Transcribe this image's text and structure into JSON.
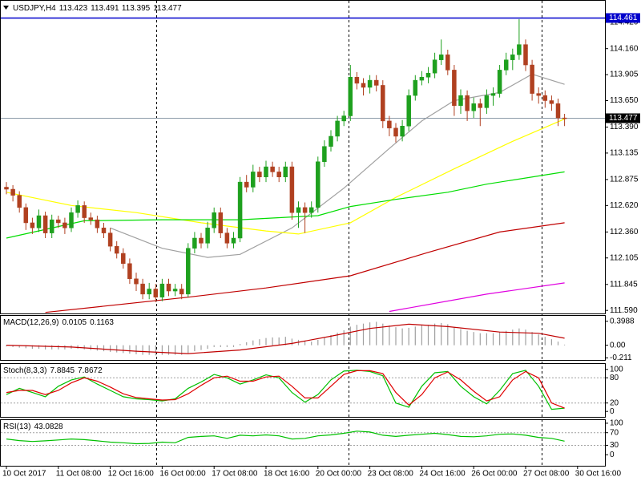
{
  "header": {
    "symbol": "USDJPY,H4",
    "values": [
      113.423,
      113.491,
      113.395,
      113.477
    ]
  },
  "chart_data": [
    {
      "type": "candlestick",
      "ylim": [
        111.56,
        114.63
      ],
      "yticks": [
        {
          "value": 114.42,
          "label": "114.420"
        },
        {
          "value": 114.16,
          "label": "114.160"
        },
        113.905,
        {
          "value": 113.65,
          "label": "113.650"
        },
        {
          "value": 113.39,
          "label": "113.390"
        },
        113.135,
        112.875,
        {
          "value": 112.62,
          "label": "112.620"
        },
        {
          "value": 112.36,
          "label": "112.360"
        },
        112.105,
        111.845,
        {
          "value": 111.59,
          "label": "111.590"
        }
      ],
      "up_color": "#1ea01e",
      "down_color": "#b04020",
      "candles": [
        [
          112.8,
          112.85,
          112.73,
          112.78
        ],
        [
          112.78,
          112.82,
          112.66,
          112.72
        ],
        [
          112.72,
          112.76,
          112.55,
          112.6
        ],
        [
          112.6,
          112.64,
          112.38,
          112.45
        ],
        [
          112.45,
          112.5,
          112.34,
          112.4
        ],
        [
          112.4,
          112.58,
          112.36,
          112.52
        ],
        [
          112.52,
          112.56,
          112.3,
          112.35
        ],
        [
          112.35,
          112.53,
          112.3,
          112.48
        ],
        [
          112.48,
          112.52,
          112.4,
          112.45
        ],
        [
          112.45,
          112.5,
          112.34,
          112.4
        ],
        [
          112.4,
          112.6,
          112.36,
          112.55
        ],
        [
          112.55,
          112.67,
          112.5,
          112.62
        ],
        [
          112.62,
          112.66,
          112.45,
          112.5
        ],
        [
          112.5,
          112.55,
          112.43,
          112.48
        ],
        [
          112.48,
          112.52,
          112.35,
          112.4
        ],
        [
          112.4,
          112.45,
          112.3,
          112.35
        ],
        [
          112.35,
          112.4,
          112.17,
          112.22
        ],
        [
          112.22,
          112.27,
          112.1,
          112.15
        ],
        [
          112.15,
          112.2,
          112.0,
          112.05
        ],
        [
          112.05,
          112.1,
          111.85,
          111.9
        ],
        [
          111.9,
          111.96,
          111.78,
          111.85
        ],
        [
          111.85,
          111.9,
          111.7,
          111.75
        ],
        [
          111.75,
          111.86,
          111.7,
          111.8
        ],
        [
          111.8,
          111.85,
          111.67,
          111.72
        ],
        [
          111.72,
          111.9,
          111.68,
          111.85
        ],
        [
          111.85,
          111.9,
          111.73,
          111.78
        ],
        [
          111.78,
          111.85,
          111.73,
          111.8
        ],
        [
          111.8,
          111.85,
          111.7,
          111.75
        ],
        [
          111.75,
          112.25,
          111.72,
          112.2
        ],
        [
          112.2,
          112.36,
          112.15,
          112.3
        ],
        [
          112.3,
          112.35,
          112.2,
          112.25
        ],
        [
          112.25,
          112.46,
          112.2,
          112.4
        ],
        [
          112.4,
          112.6,
          112.35,
          112.55
        ],
        [
          112.55,
          112.6,
          112.3,
          112.35
        ],
        [
          112.35,
          112.4,
          112.2,
          112.25
        ],
        [
          112.25,
          112.36,
          112.2,
          112.3
        ],
        [
          112.3,
          112.9,
          112.26,
          112.85
        ],
        [
          112.85,
          112.92,
          112.75,
          112.8
        ],
        [
          112.8,
          113.02,
          112.75,
          112.95
        ],
        [
          112.95,
          113.0,
          112.85,
          112.9
        ],
        [
          112.9,
          113.06,
          112.85,
          113.0
        ],
        [
          113.0,
          113.05,
          112.9,
          112.95
        ],
        [
          112.95,
          113.0,
          112.85,
          112.9
        ],
        [
          112.9,
          113.05,
          112.85,
          113.0
        ],
        [
          113.0,
          113.05,
          112.48,
          112.55
        ],
        [
          112.55,
          112.66,
          112.4,
          112.6
        ],
        [
          112.6,
          112.65,
          112.35,
          112.55
        ],
        [
          112.55,
          112.66,
          112.5,
          112.6
        ],
        [
          112.6,
          113.1,
          112.55,
          113.05
        ],
        [
          113.05,
          113.26,
          113.0,
          113.2
        ],
        [
          113.2,
          113.36,
          113.15,
          113.3
        ],
        [
          113.3,
          113.5,
          113.25,
          113.45
        ],
        [
          113.45,
          113.55,
          113.4,
          113.5
        ],
        [
          113.5,
          114.0,
          113.45,
          113.88
        ],
        [
          113.88,
          113.93,
          113.76,
          113.82
        ],
        [
          113.82,
          113.87,
          113.7,
          113.78
        ],
        [
          113.78,
          113.9,
          113.72,
          113.85
        ],
        [
          113.85,
          113.9,
          113.74,
          113.8
        ],
        [
          113.8,
          113.85,
          113.38,
          113.45
        ],
        [
          113.45,
          113.5,
          113.3,
          113.38
        ],
        [
          113.38,
          113.43,
          113.24,
          113.3
        ],
        [
          113.3,
          113.46,
          113.25,
          113.4
        ],
        [
          113.4,
          113.76,
          113.35,
          113.7
        ],
        [
          113.7,
          113.9,
          113.65,
          113.85
        ],
        [
          113.85,
          113.94,
          113.8,
          113.88
        ],
        [
          113.88,
          113.98,
          113.82,
          113.92
        ],
        [
          113.92,
          114.12,
          113.87,
          114.05
        ],
        [
          114.05,
          114.25,
          114.0,
          114.1
        ],
        [
          114.1,
          114.15,
          113.9,
          113.95
        ],
        [
          113.95,
          114.0,
          113.5,
          113.6
        ],
        [
          113.6,
          113.76,
          113.52,
          113.7
        ],
        [
          113.7,
          113.75,
          113.45,
          113.55
        ],
        [
          113.55,
          113.68,
          113.48,
          113.62
        ],
        [
          113.62,
          113.67,
          113.4,
          113.58
        ],
        [
          113.58,
          113.76,
          113.52,
          113.7
        ],
        [
          113.7,
          113.78,
          113.6,
          113.72
        ],
        [
          113.72,
          114.0,
          113.68,
          113.95
        ],
        [
          113.95,
          114.12,
          113.9,
          114.05
        ],
        [
          114.05,
          114.16,
          113.95,
          114.1
        ],
        [
          114.1,
          114.45,
          114.05,
          114.2
        ],
        [
          114.2,
          114.25,
          113.94,
          114.0
        ],
        [
          114.0,
          114.05,
          113.65,
          113.72
        ],
        [
          113.72,
          113.78,
          113.62,
          113.7
        ],
        [
          113.7,
          113.75,
          113.58,
          113.65
        ],
        [
          113.65,
          113.7,
          113.55,
          113.62
        ],
        [
          113.62,
          113.67,
          113.4,
          113.48
        ],
        [
          113.48,
          113.52,
          113.4,
          113.477
        ]
      ],
      "moving_averages": [
        {
          "color": "#a0a0a0",
          "x": [
            16,
            24,
            31,
            36,
            44,
            52,
            59,
            64,
            69,
            76,
            81,
            86
          ],
          "values": [
            112.4,
            112.2,
            112.11,
            112.14,
            112.4,
            112.79,
            113.18,
            113.45,
            113.65,
            113.73,
            113.91,
            113.81
          ]
        },
        {
          "color": "#ffff00",
          "x": [
            0,
            10,
            20,
            30,
            40,
            45,
            53,
            60,
            69,
            78,
            86
          ],
          "values": [
            112.75,
            112.62,
            112.55,
            112.45,
            112.37,
            112.34,
            112.45,
            112.7,
            112.98,
            113.25,
            113.47
          ]
        },
        {
          "color": "#00dd00",
          "x": [
            0,
            12,
            24,
            36,
            48,
            53,
            60,
            68,
            74,
            86
          ],
          "values": [
            112.3,
            112.47,
            112.48,
            112.48,
            112.52,
            112.61,
            112.68,
            112.75,
            112.83,
            112.95
          ]
        },
        {
          "color": "#c00000",
          "x": [
            6,
            28,
            40,
            53,
            65,
            76,
            86
          ],
          "values": [
            111.57,
            111.72,
            111.81,
            111.93,
            112.16,
            112.36,
            112.45
          ]
        },
        {
          "color": "#e000e0",
          "x": [
            59,
            74,
            86
          ],
          "values": [
            111.58,
            111.75,
            111.86
          ]
        }
      ],
      "hlines": [
        {
          "value": 114.461,
          "color": "#0000cc",
          "tag_color": "#0000cc",
          "text_color": "#ffffff"
        },
        {
          "value": 113.477,
          "color": "#8c9aa8",
          "tag_color": "#000000",
          "text_color": "#ffffff"
        }
      ],
      "xlabels": [
        "10 Oct 2017",
        "11 Oct 08:00",
        "12 Oct 16:00",
        "16 Oct 00:00",
        "17 Oct 08:00",
        "18 Oct 16:00",
        "20 Oct 00:00",
        "23 Oct 08:00",
        "24 Oct 16:00",
        "26 Oct 00:00",
        "27 Oct 08:00",
        "30 Oct 16:00"
      ]
    },
    {
      "type": "macd",
      "title": "MACD(12,26,9)",
      "title_values": [
        0.0105,
        0.1163
      ],
      "ylim": [
        -0.245,
        0.489
      ],
      "yticks": [
        0.3988,
        {
          "value": 0,
          "label": "0.00"
        },
        -0.211
      ],
      "histogram": {
        "color": "#a0a0a0",
        "values": [
          -0.02,
          -0.03,
          -0.04,
          -0.05,
          -0.06,
          -0.06,
          -0.07,
          -0.07,
          -0.07,
          -0.07,
          -0.06,
          -0.06,
          -0.07,
          -0.08,
          -0.09,
          -0.1,
          -0.11,
          -0.12,
          -0.13,
          -0.14,
          -0.15,
          -0.16,
          -0.16,
          -0.17,
          -0.16,
          -0.16,
          -0.16,
          -0.16,
          -0.13,
          -0.1,
          -0.08,
          -0.06,
          -0.03,
          -0.03,
          -0.03,
          -0.03,
          0.02,
          0.05,
          0.08,
          0.1,
          0.12,
          0.13,
          0.13,
          0.14,
          0.11,
          0.09,
          0.07,
          0.06,
          0.09,
          0.13,
          0.17,
          0.21,
          0.25,
          0.31,
          0.34,
          0.36,
          0.38,
          0.39,
          0.36,
          0.33,
          0.3,
          0.28,
          0.29,
          0.31,
          0.33,
          0.34,
          0.36,
          0.37,
          0.35,
          0.3,
          0.27,
          0.24,
          0.22,
          0.2,
          0.2,
          0.2,
          0.22,
          0.24,
          0.26,
          0.28,
          0.26,
          0.22,
          0.18,
          0.14,
          0.1,
          0.06,
          0.0105
        ]
      },
      "signal": {
        "color": "#c00000",
        "x": [
          0,
          10,
          20,
          28,
          36,
          44,
          50,
          56,
          62,
          68,
          76,
          82,
          86
        ],
        "values": [
          0.0,
          -0.03,
          -0.1,
          -0.14,
          -0.08,
          0.03,
          0.15,
          0.28,
          0.35,
          0.31,
          0.22,
          0.2,
          0.1163
        ]
      }
    },
    {
      "type": "stochastic",
      "title": "Stoch(8,3,3)",
      "title_values": [
        7.8845,
        7.8672
      ],
      "ylim": [
        -13,
        113
      ],
      "yticks": [
        100,
        80,
        20,
        0
      ],
      "levels": [
        80,
        20
      ],
      "series": [
        {
          "color": "#00c000",
          "x": [
            0,
            2,
            4,
            6,
            8,
            10,
            12,
            14,
            16,
            18,
            20,
            22,
            24,
            26,
            28,
            30,
            32,
            34,
            36,
            38,
            40,
            42,
            44,
            46,
            48,
            50,
            52,
            54,
            56,
            58,
            60,
            62,
            64,
            66,
            68,
            70,
            72,
            74,
            76,
            78,
            80,
            82,
            84,
            86
          ],
          "values": [
            40,
            55,
            45,
            35,
            60,
            75,
            82,
            65,
            50,
            35,
            30,
            28,
            25,
            30,
            55,
            70,
            88,
            80,
            65,
            75,
            87,
            80,
            45,
            22,
            40,
            75,
            96,
            98,
            95,
            85,
            20,
            10,
            60,
            92,
            95,
            60,
            35,
            18,
            50,
            90,
            98,
            60,
            5,
            7.8845
          ]
        },
        {
          "color": "#e00000",
          "x": [
            0,
            2,
            4,
            6,
            8,
            10,
            12,
            14,
            16,
            18,
            20,
            22,
            24,
            26,
            28,
            30,
            32,
            34,
            36,
            38,
            40,
            42,
            44,
            46,
            48,
            50,
            52,
            54,
            56,
            58,
            60,
            62,
            64,
            66,
            68,
            70,
            72,
            74,
            76,
            78,
            80,
            82,
            84,
            86
          ],
          "values": [
            45,
            50,
            50,
            40,
            50,
            68,
            80,
            72,
            58,
            42,
            33,
            30,
            27,
            28,
            42,
            62,
            80,
            84,
            72,
            72,
            82,
            84,
            60,
            32,
            32,
            60,
            88,
            97,
            97,
            90,
            45,
            15,
            40,
            80,
            94,
            75,
            48,
            25,
            35,
            75,
            95,
            80,
            20,
            7.8672
          ]
        }
      ]
    },
    {
      "type": "rsi",
      "title": "RSI(13)",
      "title_values": [
        43.0828
      ],
      "ylim": [
        -35,
        110
      ],
      "yticks": [
        100,
        70,
        30,
        0
      ],
      "levels": [
        70,
        30
      ],
      "series": [
        {
          "color": "#00c000",
          "x": [
            0,
            2,
            4,
            6,
            8,
            10,
            12,
            14,
            16,
            18,
            20,
            22,
            24,
            26,
            28,
            30,
            32,
            34,
            36,
            38,
            40,
            42,
            44,
            46,
            48,
            50,
            52,
            54,
            56,
            58,
            60,
            62,
            64,
            66,
            68,
            70,
            72,
            74,
            76,
            78,
            80,
            82,
            84,
            86
          ],
          "values": [
            50,
            45,
            42,
            44,
            47,
            50,
            48,
            44,
            40,
            38,
            35,
            36,
            40,
            38,
            55,
            58,
            60,
            52,
            62,
            60,
            63,
            60,
            50,
            52,
            60,
            63,
            68,
            75,
            72,
            62,
            58,
            62,
            65,
            68,
            64,
            58,
            57,
            60,
            65,
            66,
            62,
            55,
            52,
            43.0828
          ]
        }
      ]
    }
  ]
}
